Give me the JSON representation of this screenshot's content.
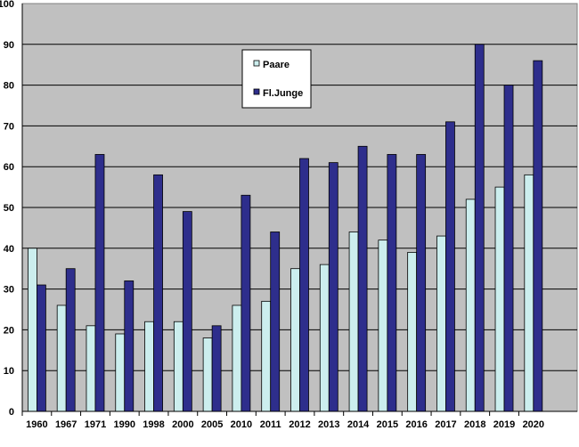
{
  "chart_data": {
    "type": "bar",
    "categories": [
      "1960",
      "1967",
      "1971",
      "1990",
      "1998",
      "2000",
      "2005",
      "2010",
      "2011",
      "2012",
      "2013",
      "2014",
      "2015",
      "2016",
      "2017",
      "2018",
      "2019",
      "2020"
    ],
    "series": [
      {
        "name": "Paare",
        "color": "#cceeee",
        "values": [
          40,
          26,
          21,
          19,
          22,
          22,
          18,
          26,
          27,
          35,
          36,
          44,
          42,
          39,
          43,
          52,
          55,
          58
        ]
      },
      {
        "name": "Fl.Junge",
        "color": "#2e2e8c",
        "values": [
          31,
          35,
          63,
          32,
          58,
          49,
          21,
          53,
          44,
          62,
          61,
          65,
          63,
          63,
          71,
          90,
          80,
          86
        ]
      }
    ],
    "ylim": [
      0,
      100
    ],
    "yticks": [
      0,
      10,
      20,
      30,
      40,
      50,
      60,
      70,
      80,
      90,
      100
    ],
    "grid": true,
    "legend_position": "top-center",
    "colors": {
      "plot_background": "#c0c0c0",
      "gridline": "#000000"
    }
  }
}
